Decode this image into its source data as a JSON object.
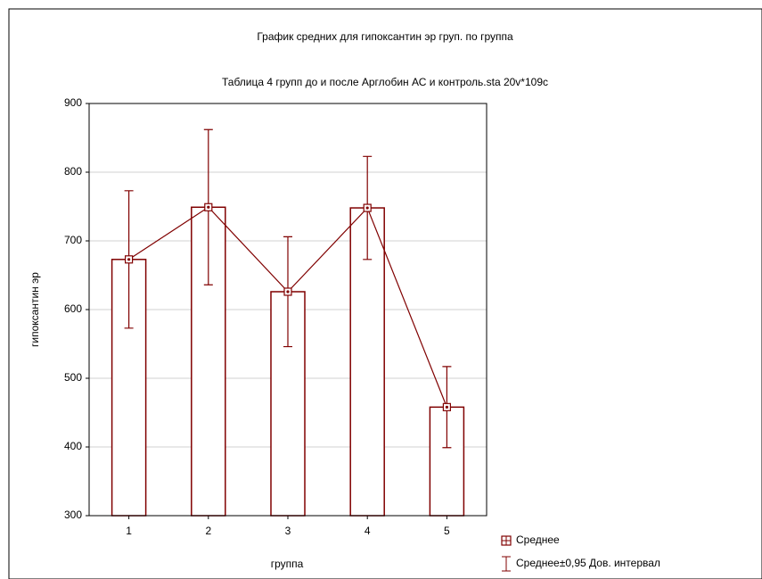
{
  "chart_data": {
    "type": "bar_error_line",
    "title": "График средних для гипоксантин эр груп. по группа",
    "subtitle": "Таблица 4 групп до и после Арглобин  АС  и контроль.sta 20v*109c",
    "xlabel": "группа",
    "ylabel": "гипоксантин эр",
    "categories": [
      "1",
      "2",
      "3",
      "4",
      "5"
    ],
    "series": [
      {
        "name": "Среднее",
        "error_name": "Среднее±0,95 Дов. интервал",
        "color": "#800000",
        "values": [
          673,
          749,
          626,
          748,
          458
        ],
        "errors": [
          100,
          113,
          80,
          75,
          59
        ]
      }
    ],
    "ylim": [
      300,
      900
    ],
    "yticks": [
      300,
      400,
      500,
      600,
      700,
      800,
      900
    ],
    "grid": true
  }
}
